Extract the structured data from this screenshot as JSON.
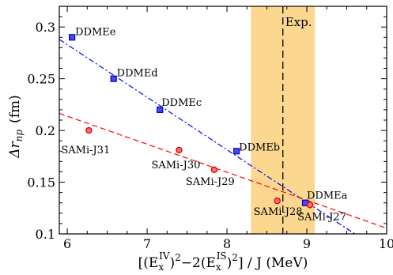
{
  "chart_data": {
    "type": "scatter",
    "xlim": [
      5.9,
      10.0
    ],
    "ylim": [
      0.1,
      0.32
    ],
    "xticks": [
      6,
      7,
      8,
      9,
      10
    ],
    "yticks": [
      0.1,
      0.15,
      0.2,
      0.25,
      0.3
    ],
    "xtick_labels": [
      "6",
      "7",
      "8",
      "9",
      "10"
    ],
    "ytick_labels": [
      "0.1",
      "0.15",
      "0.2",
      "0.25",
      "0.3"
    ],
    "xlabel": {
      "open": "[(E",
      "sub1": "x",
      "sup1": "IV",
      "mid": ")",
      "two1": "2",
      "minus": "−2(E",
      "sub2": "x",
      "sup2": "IS",
      "close": ")",
      "two2": "2",
      "rest": "] / J  (MeV)"
    },
    "ylabel": {
      "delta": "Δr",
      "sub": "np",
      "unit": "(fm)"
    },
    "band": {
      "x0": 8.3,
      "x1": 9.1,
      "color": "#f5a623"
    },
    "vline": {
      "x": 8.7,
      "label": "Exp."
    },
    "series": [
      {
        "name": "DDME",
        "marker": "square",
        "color": "#0000ff",
        "points": [
          {
            "label": "DDMEe",
            "x": 6.06,
            "y": 0.29
          },
          {
            "label": "DDMEd",
            "x": 6.58,
            "y": 0.25
          },
          {
            "label": "DDMEc",
            "x": 7.16,
            "y": 0.22
          },
          {
            "label": "DDMEb",
            "x": 8.12,
            "y": 0.18
          },
          {
            "label": "DDMEa",
            "x": 8.98,
            "y": 0.13
          }
        ],
        "fit": {
          "x": [
            5.9,
            9.6
          ],
          "y": [
            0.288,
            0.1
          ],
          "dash": "dashdot"
        }
      },
      {
        "name": "SAMi",
        "marker": "circle",
        "color": "#ff0000",
        "points": [
          {
            "label": "SAMi-J31",
            "x": 6.27,
            "y": 0.2
          },
          {
            "label": "SAMi-J30",
            "x": 7.4,
            "y": 0.181
          },
          {
            "label": "SAMi-J29",
            "x": 7.84,
            "y": 0.162
          },
          {
            "label": "SAMi-J28",
            "x": 8.63,
            "y": 0.132
          },
          {
            "label": "SAMi-J27",
            "x": 9.04,
            "y": 0.128
          }
        ],
        "fit": {
          "x": [
            5.9,
            10.0
          ],
          "y": [
            0.2165,
            0.1055
          ],
          "dash": "dashed"
        }
      }
    ]
  }
}
